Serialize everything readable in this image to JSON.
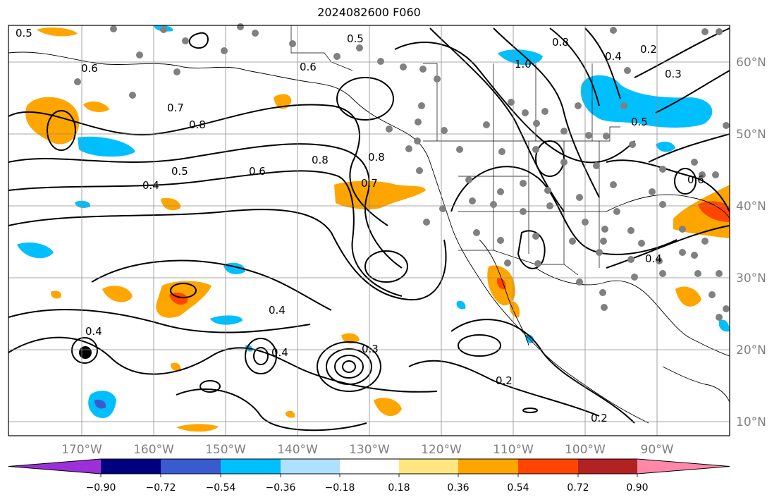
{
  "title": "2024082600 F060",
  "latitude_labels": [
    "60°N",
    "50°N",
    "40°N",
    "30°N",
    "20°N",
    "10°N"
  ],
  "longitude_labels": [
    "170°W",
    "160°W",
    "150°W",
    "140°W",
    "130°W",
    "120°W",
    "110°W",
    "100°W",
    "90°W"
  ],
  "colorbar": {
    "tick_labels": [
      "−0.90",
      "−0.72",
      "−0.54",
      "−0.36",
      "−0.18",
      "0.18",
      "0.36",
      "0.54",
      "0.72",
      "0.90"
    ],
    "colors": [
      "#9b30d9",
      "#000080",
      "#3a5bd0",
      "#00bfff",
      "#aee0ff",
      "#ffffff",
      "#ffe680",
      "#ffa500",
      "#ff4500",
      "#b22222",
      "#ff88aa"
    ]
  },
  "contour_labels": [
    "0.5",
    "0.6",
    "0.7",
    "0.8",
    "0.5",
    "0.4",
    "0.6",
    "0.8",
    "0.8",
    "0.7",
    "0.4",
    "0.4",
    "0.3",
    "0.4",
    "0.2",
    "0.2",
    "0.5",
    "0.6",
    "0.8",
    "1.0",
    "0.4",
    "0.3",
    "0.5",
    "0.2",
    "0.6",
    "0.4"
  ],
  "colors": {
    "contour": "#000000",
    "grid": "#8c8c8c",
    "stations": "#808080",
    "axis_text": "#808080"
  }
}
